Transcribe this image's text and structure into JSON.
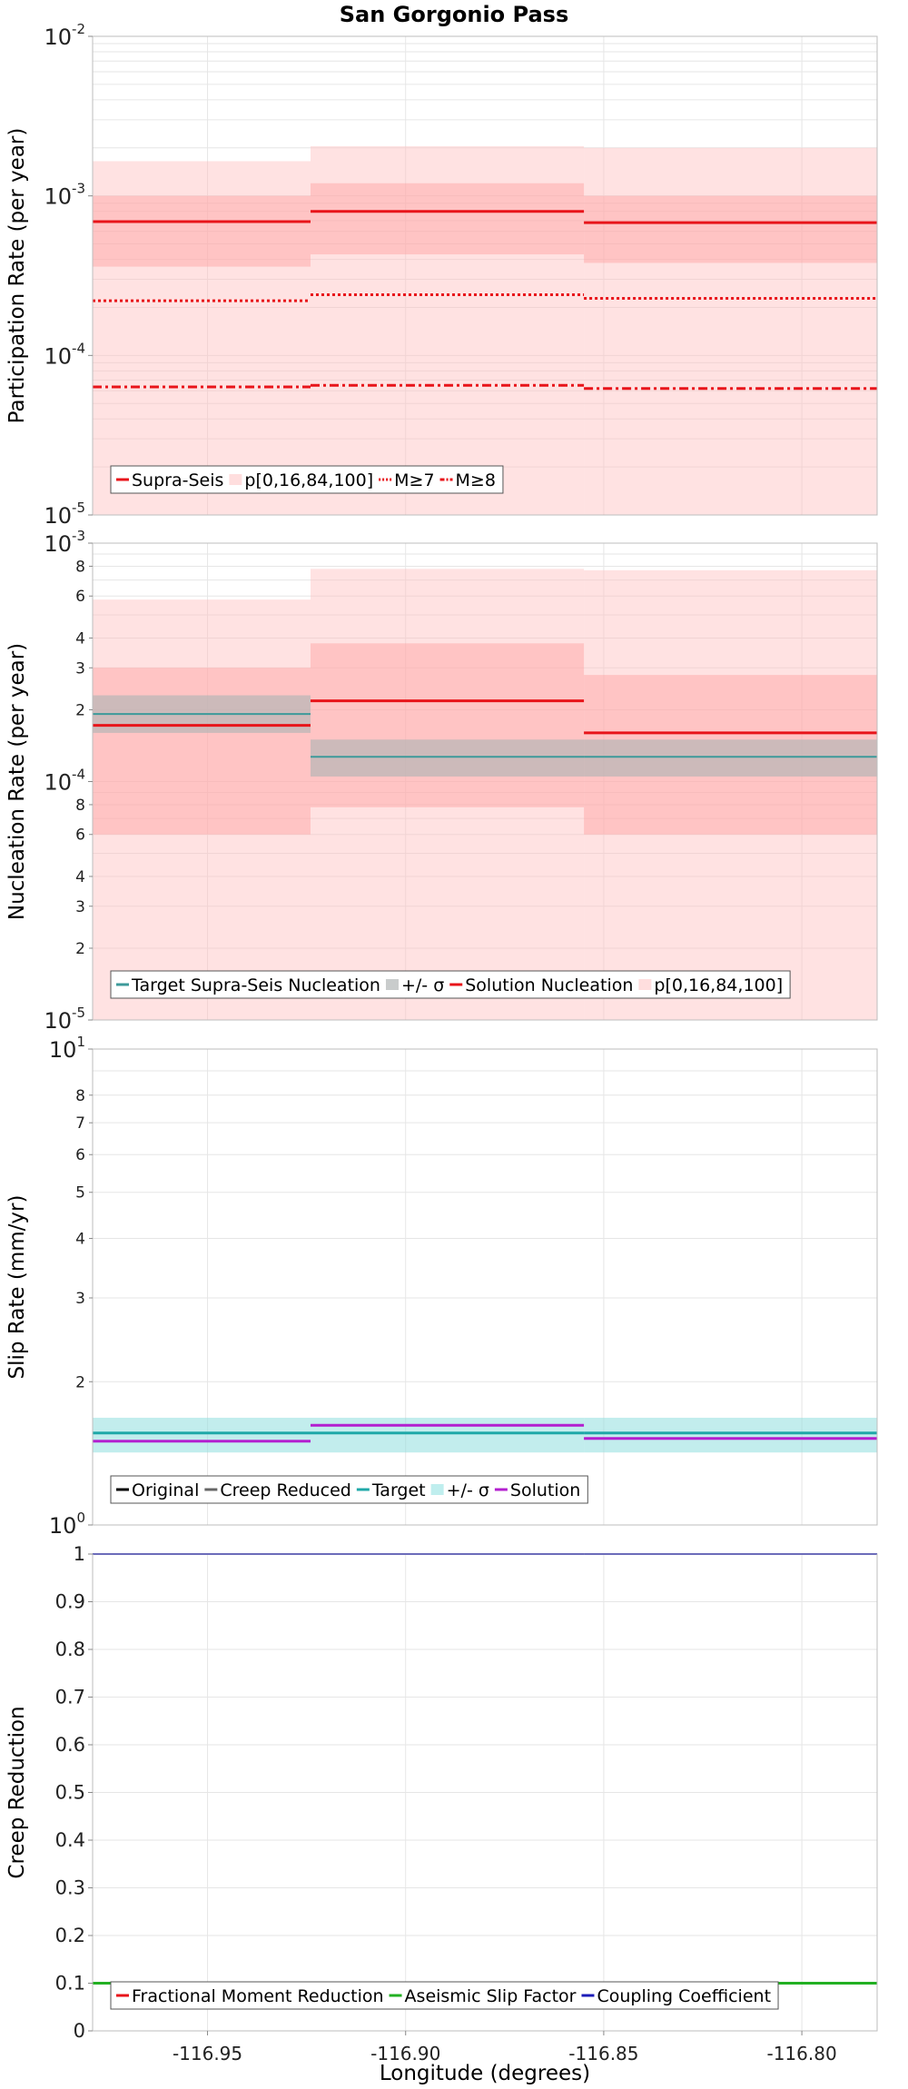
{
  "chart_data": {
    "title": "San Gorgonio Pass",
    "xlabel": "Longitude (degrees)",
    "xlim": [
      -116.979,
      -116.781
    ],
    "xticks": [
      -116.95,
      -116.9,
      -116.85,
      -116.8
    ],
    "xtick_labels": [
      "-116.95",
      "-116.90",
      "-116.85",
      "-116.80"
    ],
    "grid": true,
    "subsection_edges": [
      -116.979,
      -116.924,
      -116.855,
      -116.781
    ],
    "panels": [
      {
        "name": "participation",
        "type": "line",
        "ylabel": "Participation Rate (per year)",
        "yscale": "log",
        "ylim": [
          1e-05,
          0.01
        ],
        "yticks": [
          {
            "v": 0.01,
            "base": "10",
            "exp": "-2"
          },
          {
            "v": 0.001,
            "base": "10",
            "exp": "-3"
          },
          {
            "v": 0.0001,
            "base": "10",
            "exp": "-4"
          },
          {
            "v": 1e-05,
            "base": "10",
            "exp": "-5"
          }
        ],
        "bands": [
          {
            "color": "#ffbfbf",
            "opacity": 0.45,
            "values": [
              [
                1e-05,
                0.00165
              ],
              [
                1e-05,
                0.00205
              ],
              [
                1e-05,
                0.002
              ]
            ]
          },
          {
            "color": "#ff9f9f",
            "opacity": 0.45,
            "values": [
              [
                0.00036,
                0.001
              ],
              [
                0.00043,
                0.0012
              ],
              [
                0.00038,
                0.001
              ]
            ]
          }
        ],
        "lines": [
          {
            "color": "#e8141a",
            "style": "solid",
            "width": 3,
            "values": [
              0.00069,
              0.0008,
              0.00068
            ]
          },
          {
            "color": "#e8141a",
            "style": "dot",
            "width": 3,
            "values": [
              0.00022,
              0.00024,
              0.000228
            ]
          },
          {
            "color": "#e8141a",
            "style": "dashdot",
            "width": 3,
            "values": [
              6.35e-05,
              6.5e-05,
              6.2e-05
            ]
          }
        ],
        "legend": {
          "placement": "bottom-left",
          "items": [
            {
              "label": "Supra-Seis",
              "kind": "line",
              "color": "#e8141a",
              "style": "solid"
            },
            {
              "label": "p[0,16,84,100]",
              "kind": "box",
              "color": "#ffdede"
            },
            {
              "label": "M≥7",
              "kind": "line",
              "color": "#e8141a",
              "style": "dot"
            },
            {
              "label": "M≥8",
              "kind": "line",
              "color": "#e8141a",
              "style": "dashdot"
            }
          ]
        }
      },
      {
        "name": "nucleation",
        "type": "line",
        "ylabel": "Nucleation Rate (per year)",
        "yscale": "log",
        "ylim": [
          1e-05,
          0.001
        ],
        "yticks": [
          {
            "v": 0.001,
            "base": "10",
            "exp": "-3"
          },
          {
            "v": 0.0001,
            "base": "10",
            "exp": "-4"
          },
          {
            "v": 1e-05,
            "base": "10",
            "exp": "-5"
          }
        ],
        "minor_ticks": [
          {
            "v": 0.0008,
            "label": "8"
          },
          {
            "v": 0.0006,
            "label": "6"
          },
          {
            "v": 0.0004,
            "label": "4"
          },
          {
            "v": 0.0003,
            "label": "3"
          },
          {
            "v": 0.0002,
            "label": "2"
          },
          {
            "v": 8e-05,
            "label": "8"
          },
          {
            "v": 6e-05,
            "label": "6"
          },
          {
            "v": 4e-05,
            "label": "4"
          },
          {
            "v": 3e-05,
            "label": "3"
          },
          {
            "v": 2e-05,
            "label": "2"
          }
        ],
        "bands": [
          {
            "color": "#ffbfbf",
            "opacity": 0.45,
            "values": [
              [
                1e-05,
                0.00058
              ],
              [
                1e-05,
                0.00078
              ],
              [
                1e-05,
                0.00077
              ]
            ]
          },
          {
            "color": "#ff9f9f",
            "opacity": 0.45,
            "values": [
              [
                6e-05,
                0.0003
              ],
              [
                7.8e-05,
                0.00038
              ],
              [
                6e-05,
                0.00028
              ]
            ]
          },
          {
            "color": "#aab4b4",
            "opacity": 0.6,
            "values": [
              [
                0.00016,
                0.00023
              ],
              [
                0.000105,
                0.00015
              ],
              [
                0.000105,
                0.00015
              ]
            ]
          }
        ],
        "lines": [
          {
            "color": "#e8141a",
            "style": "solid",
            "width": 3,
            "values": [
              0.000172,
              0.000218,
              0.00016
            ]
          },
          {
            "color": "#3d9a9a",
            "style": "solid",
            "width": 2,
            "values": [
              0.000192,
              0.000127,
              0.000127
            ]
          }
        ],
        "legend": {
          "placement": "bottom-left",
          "items": [
            {
              "label": "Target Supra-Seis Nucleation",
              "kind": "line",
              "color": "#3d9a9a",
              "style": "solid"
            },
            {
              "label": "+/- σ",
              "kind": "box",
              "color": "#c9cccc"
            },
            {
              "label": "Solution Nucleation",
              "kind": "line",
              "color": "#e8141a",
              "style": "solid"
            },
            {
              "label": "p[0,16,84,100]",
              "kind": "box",
              "color": "#ffdede"
            }
          ]
        }
      },
      {
        "name": "slip",
        "type": "line",
        "ylabel": "Slip Rate (mm/yr)",
        "yscale": "log",
        "ylim": [
          1,
          10
        ],
        "yticks": [
          {
            "v": 10,
            "base": "10",
            "exp": "1"
          },
          {
            "v": 1,
            "base": "10",
            "exp": "0"
          }
        ],
        "minor_ticks": [
          {
            "v": 8,
            "label": "8"
          },
          {
            "v": 7,
            "label": "7"
          },
          {
            "v": 6,
            "label": "6"
          },
          {
            "v": 5,
            "label": "5"
          },
          {
            "v": 4,
            "label": "4"
          },
          {
            "v": 3,
            "label": "3"
          },
          {
            "v": 2,
            "label": "2"
          }
        ],
        "bands": [
          {
            "color": "#8fdede",
            "opacity": 0.55,
            "values": [
              [
                1.42,
                1.68
              ],
              [
                1.42,
                1.68
              ],
              [
                1.42,
                1.68
              ]
            ]
          }
        ],
        "lines": [
          {
            "color": "#1fa8a8",
            "style": "solid",
            "width": 3,
            "values": [
              1.56,
              1.56,
              1.56
            ]
          },
          {
            "color": "#b31fcf",
            "style": "solid",
            "width": 3,
            "values": [
              1.5,
              1.62,
              1.52
            ]
          }
        ],
        "legend": {
          "placement": "bottom-left",
          "items": [
            {
              "label": "Original",
              "kind": "line",
              "color": "#000000",
              "style": "solid"
            },
            {
              "label": "Creep Reduced",
              "kind": "line",
              "color": "#666666",
              "style": "solid"
            },
            {
              "label": "Target",
              "kind": "line",
              "color": "#1fa8a8",
              "style": "solid"
            },
            {
              "label": "+/- σ",
              "kind": "box",
              "color": "#bfeeee"
            },
            {
              "label": "Solution",
              "kind": "line",
              "color": "#b31fcf",
              "style": "solid"
            }
          ]
        }
      },
      {
        "name": "creep",
        "type": "line",
        "ylabel": "Creep Reduction",
        "yscale": "linear",
        "ylim": [
          0,
          1
        ],
        "yticks": [
          {
            "v": 1,
            "label": "1"
          },
          {
            "v": 0.9,
            "label": "0.9"
          },
          {
            "v": 0.8,
            "label": "0.8"
          },
          {
            "v": 0.7,
            "label": "0.7"
          },
          {
            "v": 0.6,
            "label": "0.6"
          },
          {
            "v": 0.5,
            "label": "0.5"
          },
          {
            "v": 0.4,
            "label": "0.4"
          },
          {
            "v": 0.3,
            "label": "0.3"
          },
          {
            "v": 0.2,
            "label": "0.2"
          },
          {
            "v": 0.1,
            "label": "0.1"
          },
          {
            "v": 0,
            "label": "0"
          }
        ],
        "bands": [],
        "lines": [
          {
            "color": "#1c1cb8",
            "style": "solid",
            "width": 2,
            "values": [
              1,
              1,
              1
            ]
          },
          {
            "color": "#22b022",
            "style": "solid",
            "width": 3,
            "values": [
              0.1,
              0.1,
              0.1
            ]
          }
        ],
        "legend": {
          "placement": "bottom-left",
          "items": [
            {
              "label": "Fractional Moment Reduction",
              "kind": "line",
              "color": "#e8141a",
              "style": "solid"
            },
            {
              "label": "Aseismic Slip Factor",
              "kind": "line",
              "color": "#22b022",
              "style": "solid"
            },
            {
              "label": "Coupling Coefficient",
              "kind": "line",
              "color": "#1c1cb8",
              "style": "solid"
            }
          ]
        }
      }
    ]
  }
}
